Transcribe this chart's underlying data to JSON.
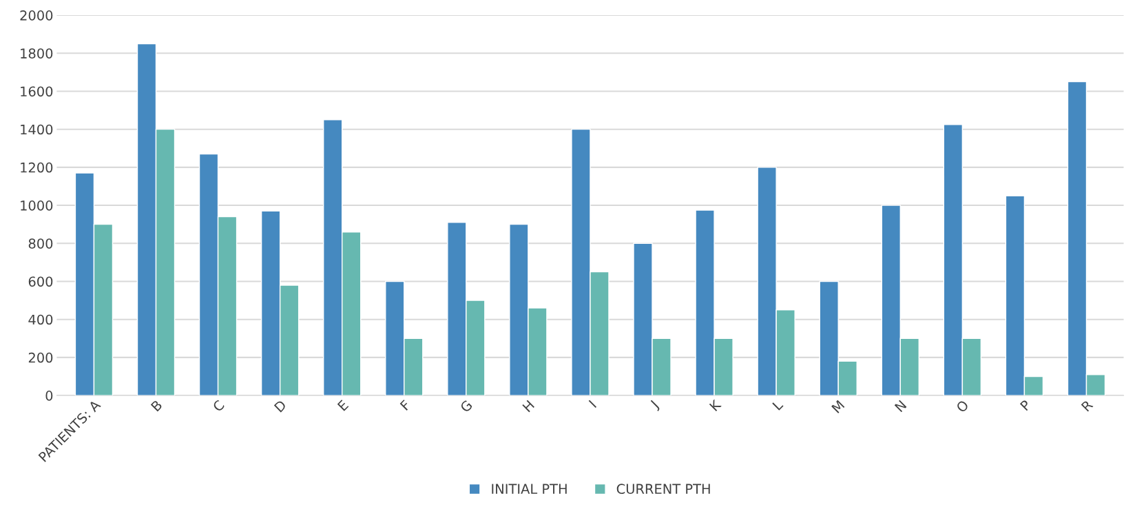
{
  "chart_data": {
    "type": "bar",
    "categories": [
      "PATIENTS: A",
      "B",
      "C",
      "D",
      "E",
      "F",
      "G",
      "H",
      "I",
      "J",
      "K",
      "L",
      "M",
      "N",
      "O",
      "P",
      "R"
    ],
    "series": [
      {
        "name": "INITIAL PTH",
        "color": "#4589c0",
        "values": [
          1170,
          1850,
          1270,
          970,
          1450,
          600,
          910,
          900,
          1400,
          800,
          975,
          1200,
          600,
          1000,
          1425,
          1050,
          1650
        ]
      },
      {
        "name": "CURRENT PTH",
        "color": "#66b8b0",
        "values": [
          900,
          1400,
          940,
          580,
          860,
          300,
          500,
          460,
          650,
          300,
          300,
          450,
          180,
          300,
          300,
          100,
          110
        ]
      }
    ],
    "ylim": [
      0,
      2000
    ],
    "yticks": [
      0,
      200,
      400,
      600,
      800,
      1000,
      1200,
      1400,
      1600,
      1800,
      2000
    ],
    "grid": "y",
    "legend": "bottom"
  }
}
